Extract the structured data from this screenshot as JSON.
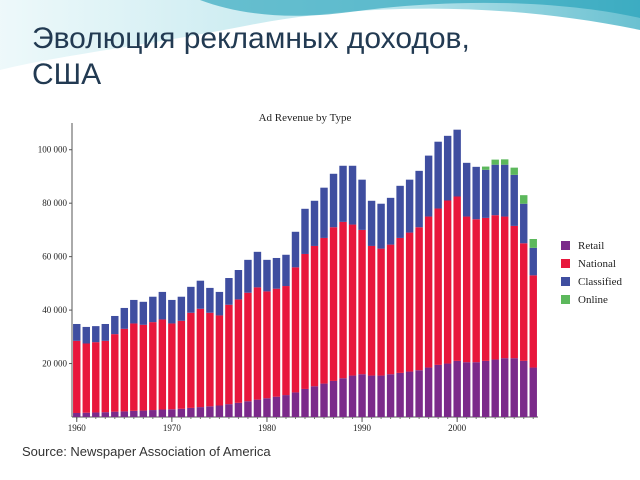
{
  "slide_title": "Эволюция рекламных доходов, США",
  "source": "Source: Newspaper Association of America",
  "chart_data": {
    "type": "stacked_bar",
    "title": "Ad Revenue by Type",
    "x": [
      1960,
      1961,
      1962,
      1963,
      1964,
      1965,
      1966,
      1967,
      1968,
      1969,
      1970,
      1971,
      1972,
      1973,
      1974,
      1975,
      1976,
      1977,
      1978,
      1979,
      1980,
      1981,
      1982,
      1983,
      1984,
      1985,
      1986,
      1987,
      1988,
      1989,
      1990,
      1991,
      1992,
      1993,
      1994,
      1995,
      1996,
      1997,
      1998,
      1999,
      2000,
      2001,
      2002,
      2003,
      2004,
      2005,
      2006,
      2007,
      2008
    ],
    "xlim": [
      1959.5,
      2008.5
    ],
    "xticks": [
      1960,
      1970,
      1980,
      1990,
      2000
    ],
    "ylim": [
      0,
      110000
    ],
    "yticks": [
      {
        "value": 20000,
        "label": "20 000"
      },
      {
        "value": 40000,
        "label": "40 000"
      },
      {
        "value": 60000,
        "label": "60 000"
      },
      {
        "value": 80000,
        "label": "80 000"
      },
      {
        "value": 100000,
        "label": "100 000"
      }
    ],
    "series": [
      {
        "name": "Retail",
        "color": "#7b2a8a",
        "values": [
          1500,
          1600,
          1700,
          1800,
          2000,
          2100,
          2300,
          2400,
          2600,
          2800,
          2900,
          3100,
          3400,
          3700,
          4000,
          4300,
          4800,
          5300,
          5900,
          6500,
          7000,
          7600,
          8200,
          9200,
          10500,
          11500,
          12500,
          13500,
          14500,
          15500,
          16000,
          15500,
          15500,
          16000,
          16500,
          17000,
          17500,
          18500,
          19500,
          20000,
          21000,
          20500,
          20500,
          21000,
          21500,
          22000,
          22000,
          21000,
          18500
        ]
      },
      {
        "name": "National",
        "color": "#e8173c",
        "values": [
          27000,
          25900,
          26300,
          26700,
          29000,
          30900,
          32700,
          32100,
          32900,
          33700,
          32100,
          32900,
          35600,
          36800,
          35000,
          33700,
          37200,
          38700,
          40600,
          42000,
          40000,
          40400,
          40800,
          46800,
          50500,
          52500,
          54500,
          57500,
          58500,
          56500,
          54000,
          48500,
          47500,
          48500,
          50500,
          52000,
          53500,
          56500,
          58500,
          61000,
          61500,
          54500,
          53500,
          53500,
          54000,
          53000,
          49500,
          44000,
          34500
        ]
      },
      {
        "name": "Classified",
        "color": "#3f4ea0",
        "values": [
          6300,
          6200,
          6000,
          6300,
          6800,
          7800,
          8800,
          8600,
          9500,
          10300,
          8800,
          9000,
          9700,
          10500,
          9300,
          8800,
          10000,
          11000,
          12300,
          13300,
          11800,
          11500,
          11700,
          13300,
          16900,
          16900,
          18800,
          20000,
          21000,
          22000,
          18800,
          16900,
          16800,
          17500,
          19500,
          19800,
          21100,
          22800,
          25000,
          24200,
          25000,
          20100,
          19600,
          18000,
          18900,
          19400,
          19100,
          14800,
          10300
        ]
      },
      {
        "name": "Online",
        "color": "#5cb85c",
        "values": [
          null,
          null,
          null,
          null,
          null,
          null,
          null,
          null,
          null,
          null,
          null,
          null,
          null,
          null,
          null,
          null,
          null,
          null,
          null,
          null,
          null,
          null,
          null,
          null,
          null,
          null,
          null,
          null,
          null,
          null,
          null,
          null,
          null,
          null,
          null,
          null,
          null,
          null,
          null,
          null,
          null,
          null,
          null,
          1200,
          1900,
          2000,
          2700,
          3200,
          3300
        ]
      }
    ]
  }
}
